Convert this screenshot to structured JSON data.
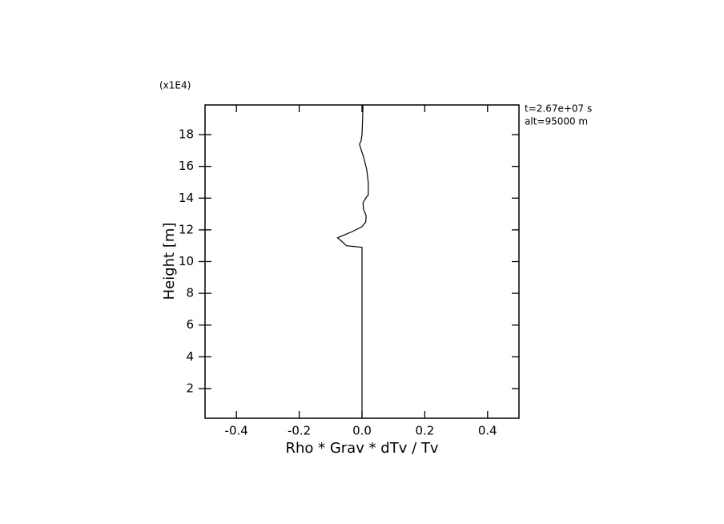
{
  "chart_data": {
    "type": "line",
    "multiplier_label": "(x1E4)",
    "annotations": [
      "t=2.67e+07 s",
      "alt=95000 m"
    ],
    "xlabel": "Rho * Grav * dTv / Tv",
    "ylabel": "Height [m]",
    "xlim": [
      -0.5,
      0.5
    ],
    "ylim": [
      0.13,
      19.87
    ],
    "xticks": [
      {
        "value": -0.4,
        "label": "-0.4"
      },
      {
        "value": -0.2,
        "label": "-0.2"
      },
      {
        "value": 0,
        "label": "0.0"
      },
      0.2,
      0.4
    ],
    "yticks": [
      2,
      4,
      6,
      8,
      10,
      12,
      14,
      16,
      18
    ],
    "series": [
      {
        "color": "#000000",
        "x": [
          0,
          0,
          -0.05,
          -0.06,
          -0.078,
          -0.06,
          -0.03,
          0,
          0.012,
          0.013,
          0.005,
          0.003,
          0.012,
          0.02,
          0.02,
          0.015,
          0.005,
          -0.002,
          -0.008,
          -0.003,
          0,
          0.002,
          0.003
        ],
        "y": [
          0.15,
          10.9,
          11.0,
          11.2,
          11.5,
          11.65,
          11.9,
          12.2,
          12.5,
          12.9,
          13.3,
          13.7,
          14.0,
          14.2,
          15.0,
          15.8,
          16.6,
          17.0,
          17.4,
          17.6,
          18.0,
          19.0,
          19.87
        ]
      }
    ]
  }
}
